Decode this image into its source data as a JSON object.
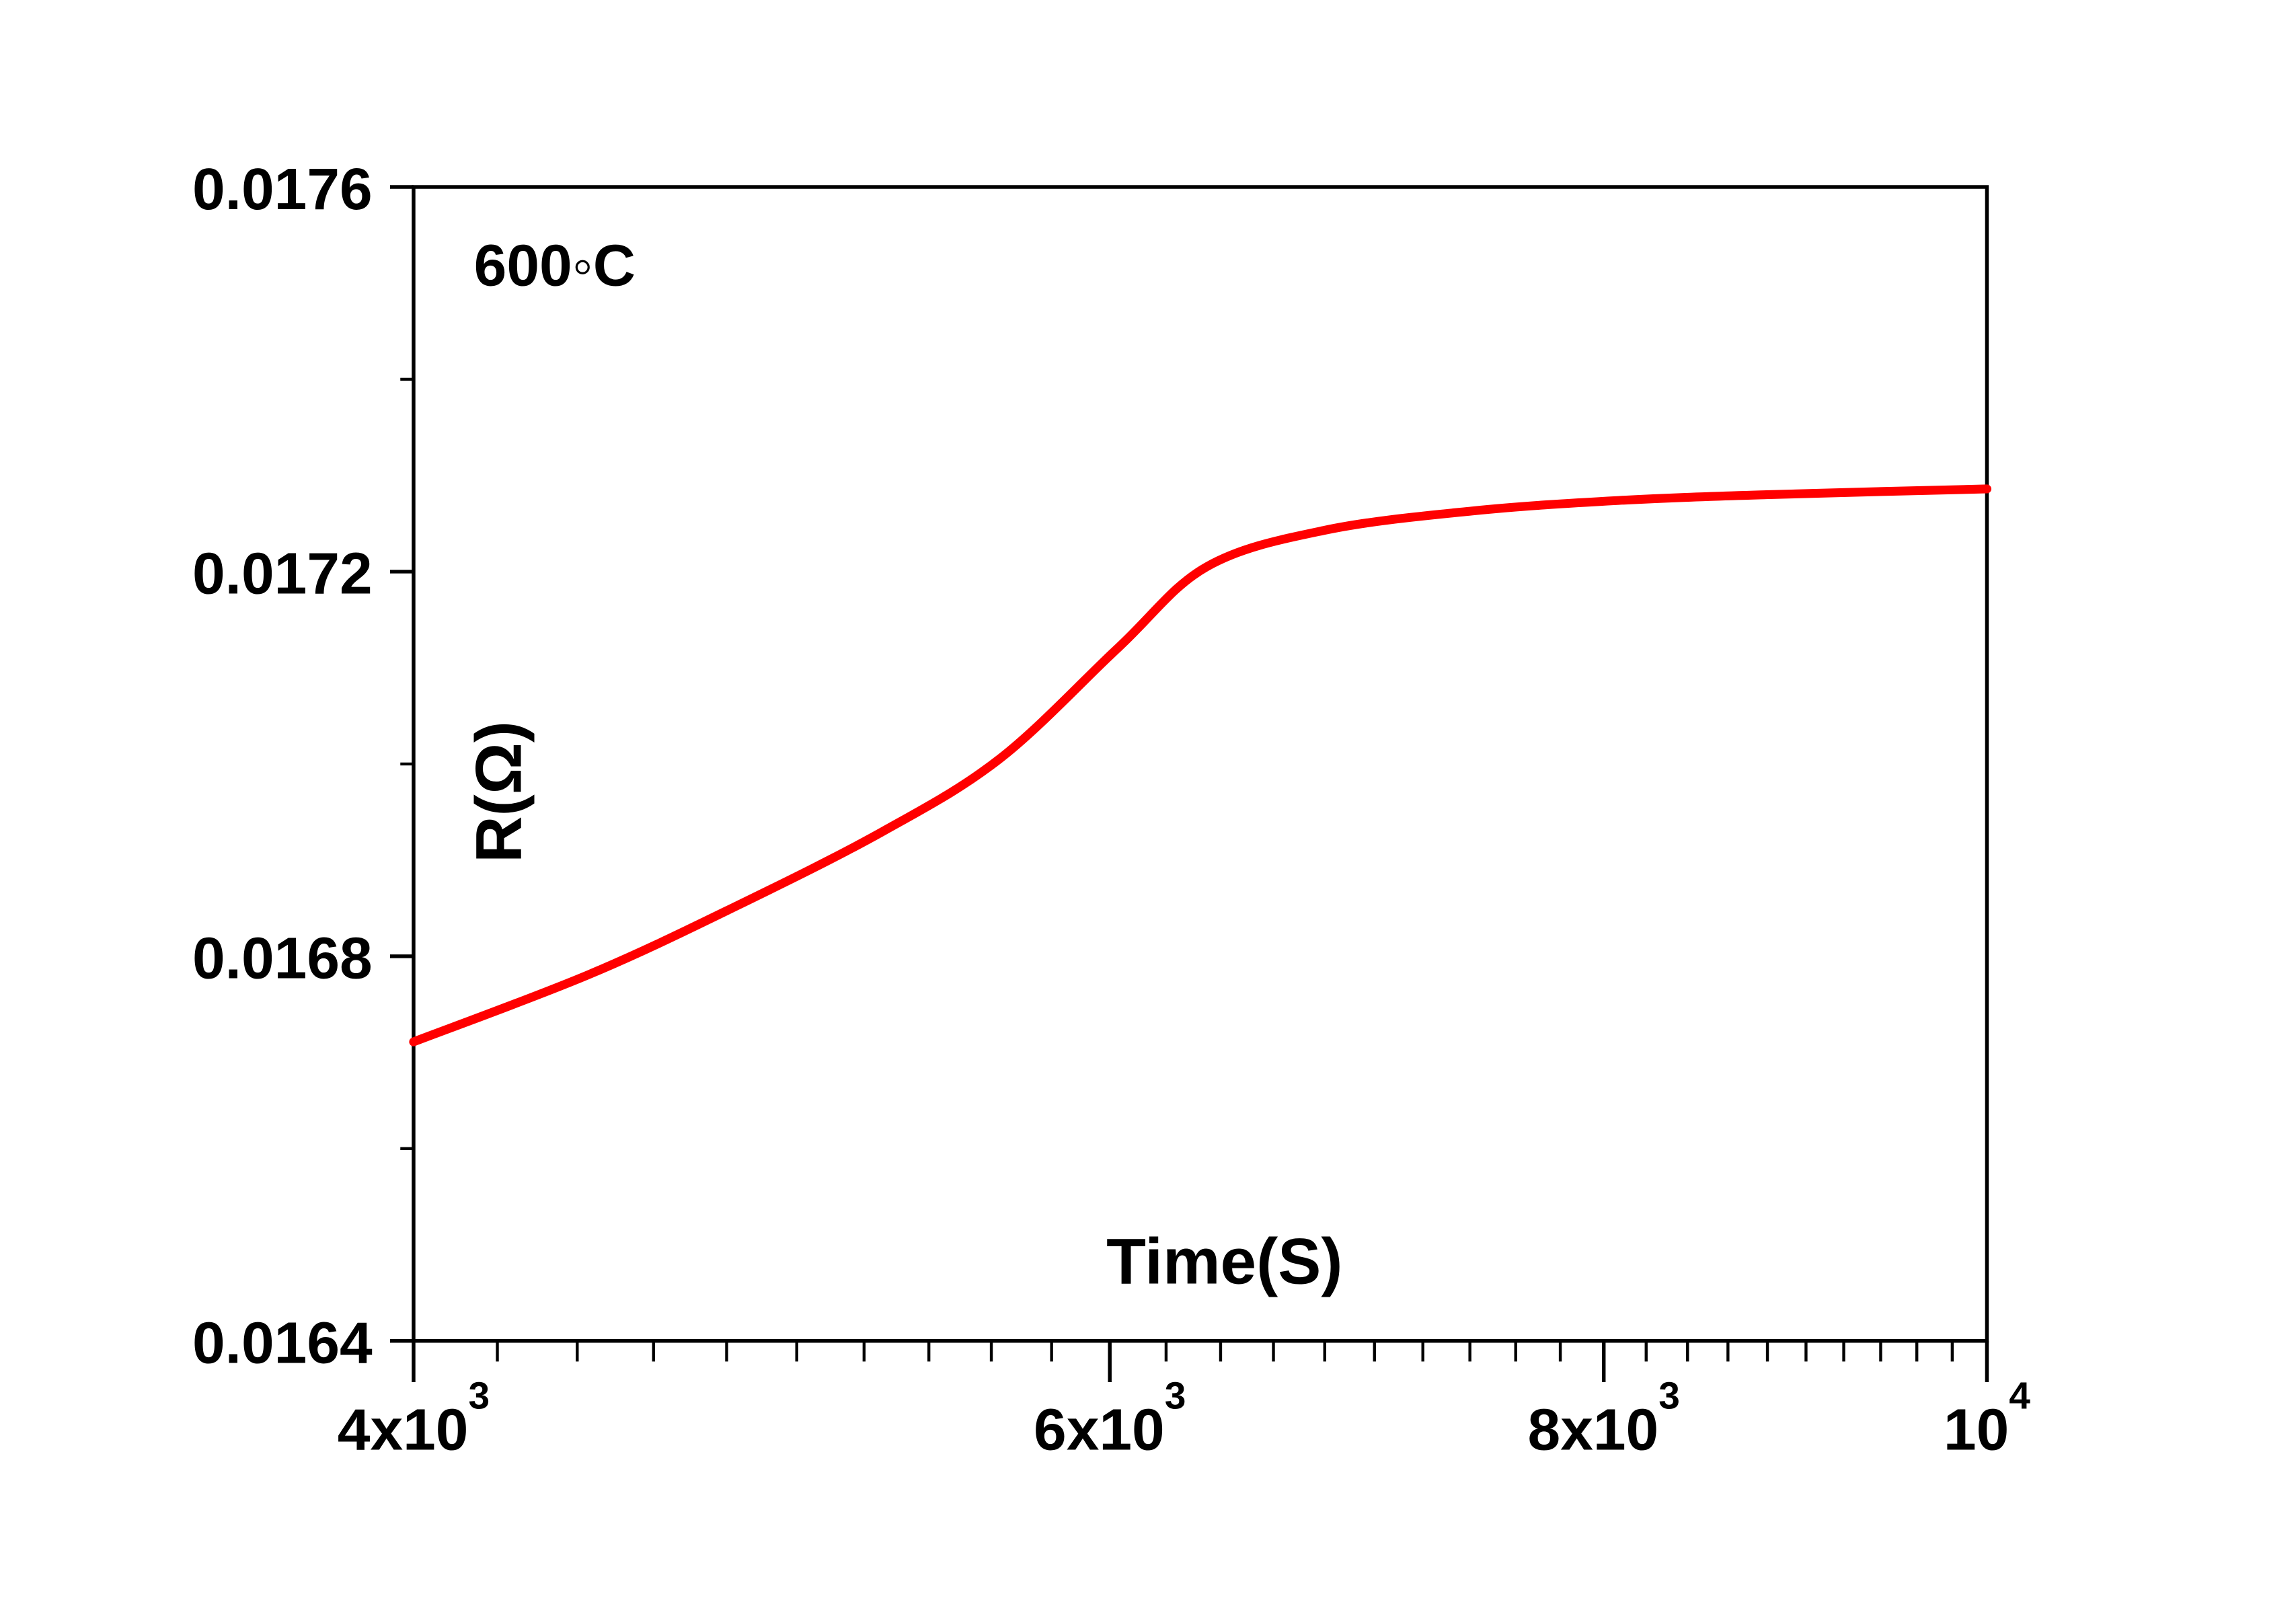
{
  "chart_data": {
    "type": "line",
    "title": "",
    "annotation": "600◦C",
    "xlabel": "Time(S)",
    "ylabel": "R(Ω)",
    "xscale": "log",
    "xlim": [
      4000,
      10000
    ],
    "ylim": [
      0.0164,
      0.0176
    ],
    "grid": false,
    "x_ticks": [
      {
        "value": 4000,
        "base": "4x10",
        "exp": "3"
      },
      {
        "value": 6000,
        "base": "6x10",
        "exp": "3"
      },
      {
        "value": 8000,
        "base": "8x10",
        "exp": "3"
      },
      {
        "value": 10000,
        "base": "10",
        "exp": "4"
      }
    ],
    "y_ticks": [
      {
        "value": 0.0164,
        "label": "0.0164"
      },
      {
        "value": 0.0168,
        "label": "0.0168"
      },
      {
        "value": 0.0172,
        "label": "0.0172"
      },
      {
        "value": 0.0176,
        "label": "0.0176"
      }
    ],
    "y_minor_ticks": [
      0.0166,
      0.017,
      0.0174
    ],
    "x_minor_step": 200,
    "series": [
      {
        "name": "R",
        "color": "#ff0000",
        "x": [
          4000,
          4430,
          4826,
          5258,
          5630,
          6030,
          6348,
          6800,
          7407,
          8070,
          8794,
          10000
        ],
        "y": [
          0.016711,
          0.016781,
          0.016852,
          0.01693,
          0.017006,
          0.017121,
          0.017205,
          0.017243,
          0.017263,
          0.017274,
          0.01728,
          0.017286
        ]
      }
    ]
  }
}
